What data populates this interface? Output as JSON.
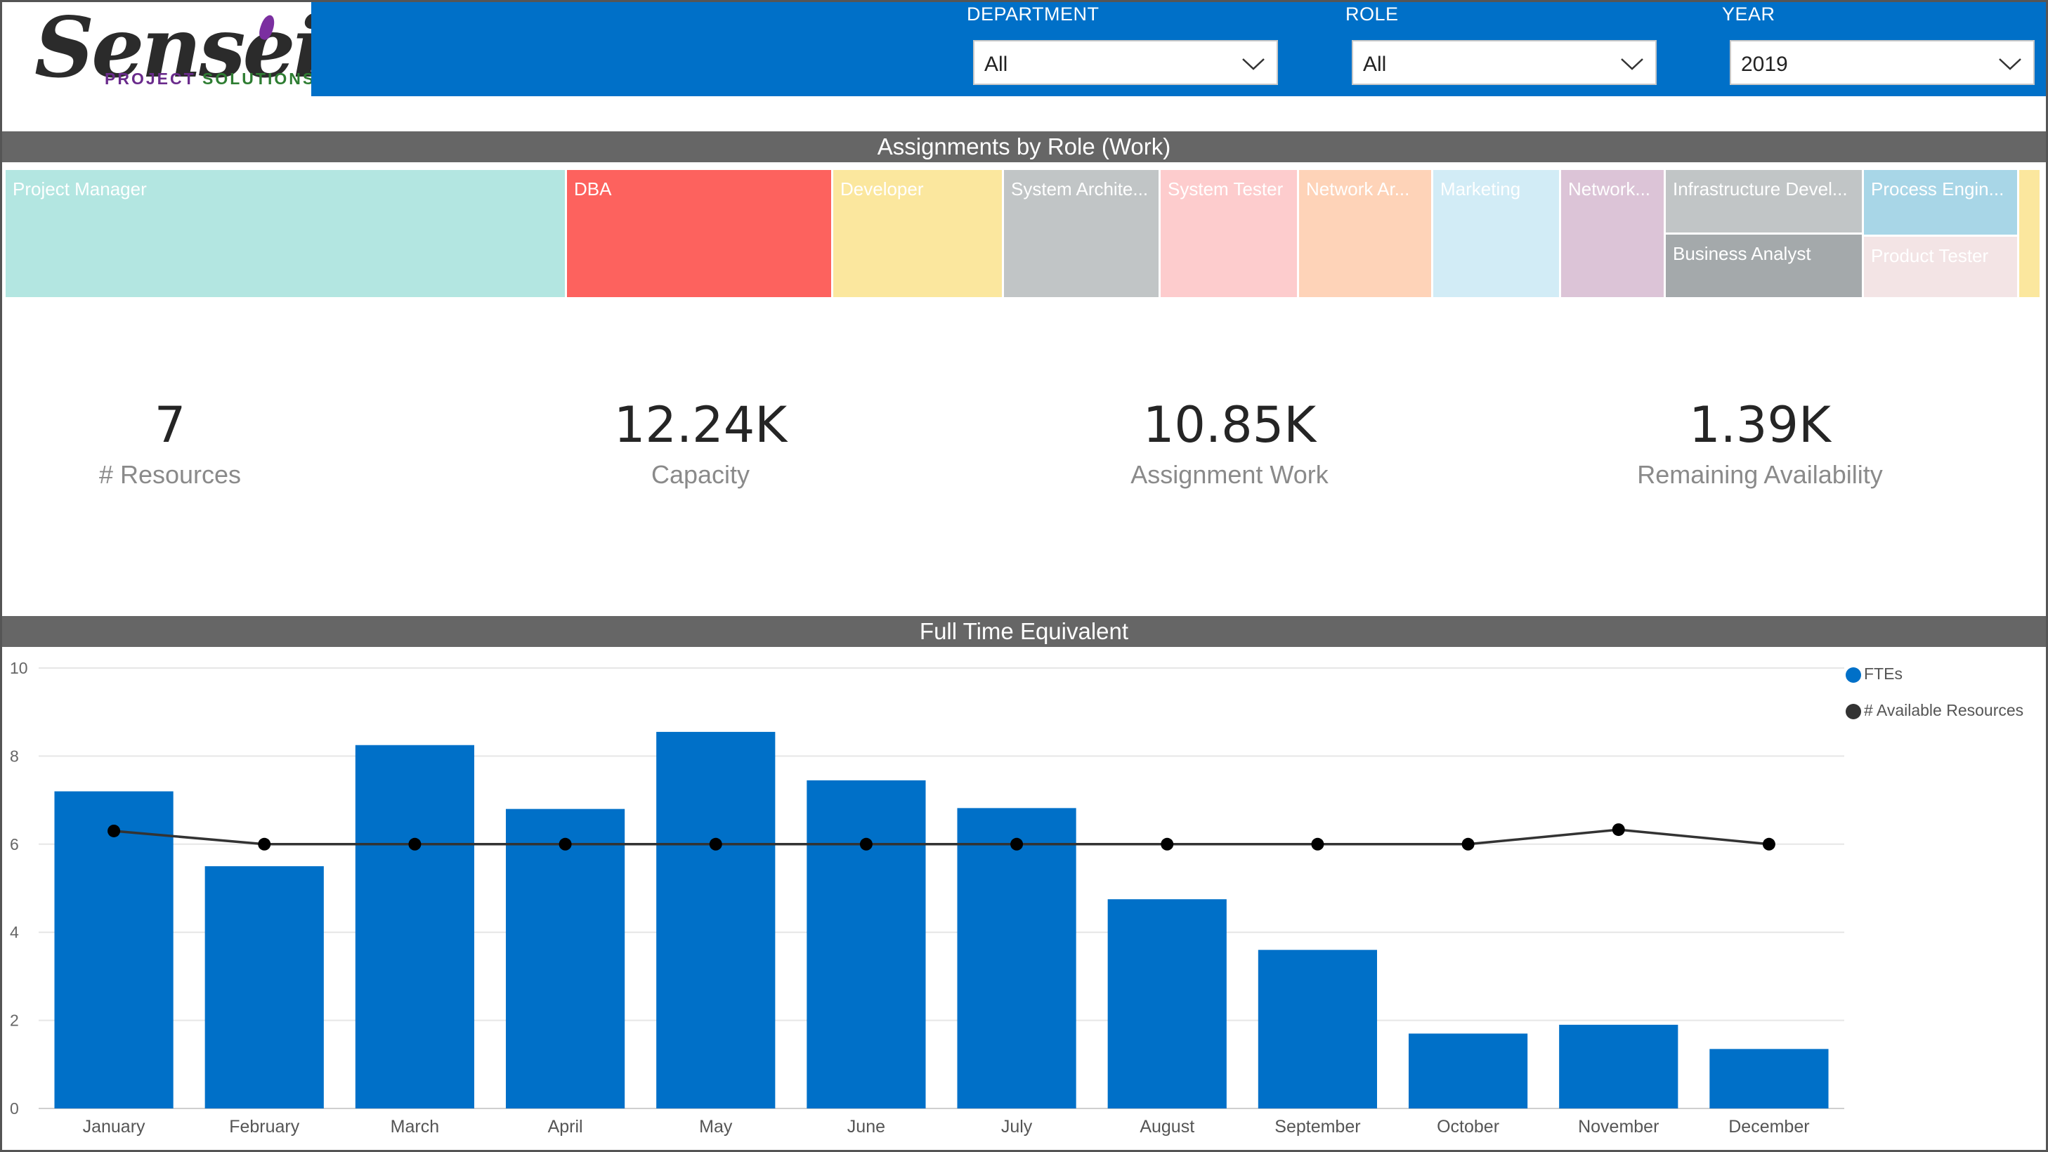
{
  "header": {
    "logo": {
      "word": "Sensei",
      "tag_part1": "PROJECT",
      "tag_part2": "SOLUTIONS"
    },
    "slicers": [
      {
        "label": "DEPARTMENT",
        "value": "All"
      },
      {
        "label": "ROLE",
        "value": "All"
      },
      {
        "label": "YEAR",
        "value": "2019"
      }
    ]
  },
  "treemap": {
    "title": "Assignments by Role (Work)",
    "tiles": [
      {
        "label": "Project Manager",
        "color": "#b3e6e1"
      },
      {
        "label": "DBA",
        "color": "#fd625e"
      },
      {
        "label": "Developer",
        "color": "#fbe79e"
      },
      {
        "label": "System Archite...",
        "color": "#c1c5c6"
      },
      {
        "label": "System Tester",
        "color": "#fdcccd"
      },
      {
        "label": "Network Ar...",
        "color": "#fed3b8"
      },
      {
        "label": "Marketing",
        "color": "#d2ecf6"
      },
      {
        "label": "Network...",
        "color": "#dcc4d7"
      },
      {
        "label": "Infrastructure Devel...",
        "color": "#c1c5c6"
      },
      {
        "label": "Business Analyst",
        "color": "#a4a9ab"
      },
      {
        "label": "Process Engin...",
        "color": "#a8d6e7"
      },
      {
        "label": "Product Tester",
        "color": "#f3e4e5"
      },
      {
        "label": "",
        "color": "#fbe79e"
      }
    ]
  },
  "kpis": [
    {
      "value": "7",
      "label": "# Resources"
    },
    {
      "value": "12.24K",
      "label": "Capacity"
    },
    {
      "value": "10.85K",
      "label": "Assignment Work"
    },
    {
      "value": "1.39K",
      "label": "Remaining Availability"
    }
  ],
  "chart_data": {
    "type": "bar",
    "title": "Full Time Equivalent",
    "categories": [
      "January",
      "February",
      "March",
      "April",
      "May",
      "June",
      "July",
      "August",
      "September",
      "October",
      "November",
      "December"
    ],
    "series": [
      {
        "name": "FTEs",
        "type": "bar",
        "color": "#0070c8",
        "values": [
          7.2,
          5.5,
          8.25,
          6.8,
          8.55,
          7.45,
          6.82,
          4.75,
          3.6,
          1.7,
          1.9,
          1.35
        ]
      },
      {
        "name": "# Available Resources",
        "type": "line",
        "color": "#333333",
        "values": [
          6.3,
          6.0,
          6.0,
          6.0,
          6.0,
          6.0,
          6.0,
          6.0,
          6.0,
          6.0,
          6.33,
          6.0
        ]
      }
    ],
    "ylim": [
      0,
      10
    ],
    "yticks": [
      0,
      2,
      4,
      6,
      8,
      10
    ],
    "grid": true,
    "legend": "top-right"
  }
}
